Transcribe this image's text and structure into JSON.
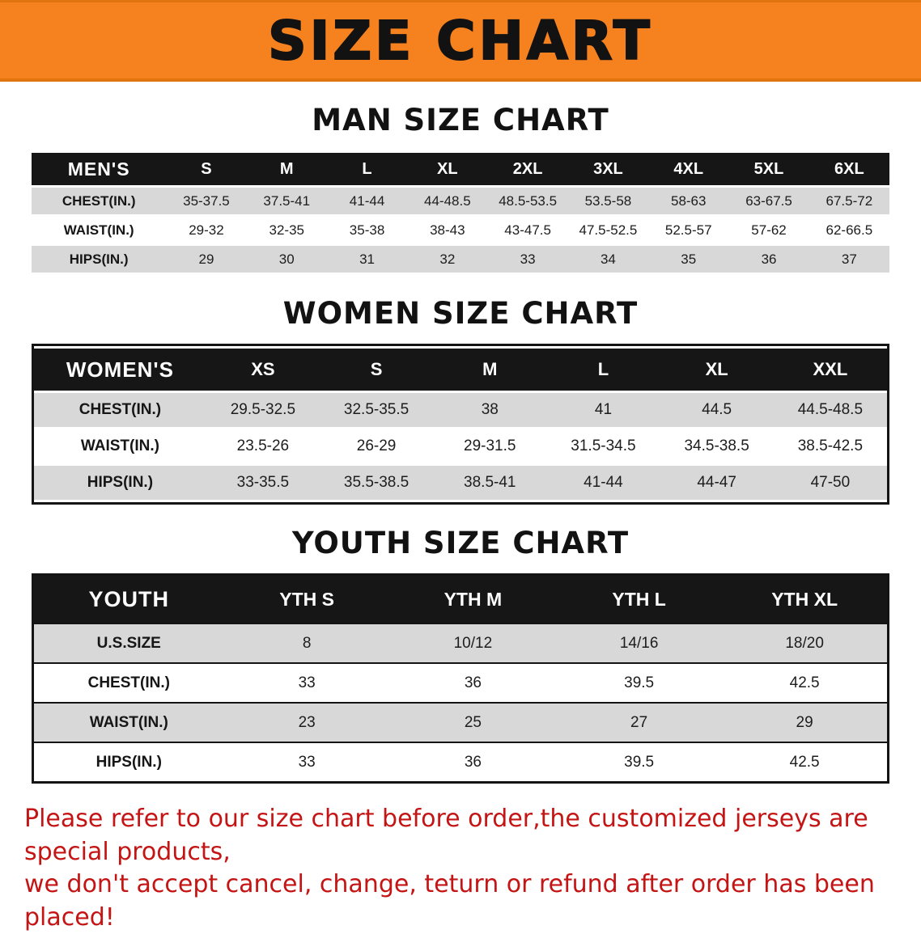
{
  "banner": {
    "title": "SIZE CHART",
    "background_color": "#F5821F"
  },
  "sections": {
    "men": {
      "title": "MAN SIZE CHART",
      "table": {
        "label": "MEN'S",
        "columns": [
          "S",
          "M",
          "L",
          "XL",
          "2XL",
          "3XL",
          "4XL",
          "5XL",
          "6XL"
        ],
        "rows": [
          {
            "label": "CHEST(IN.)",
            "values": [
              "35-37.5",
              "37.5-41",
              "41-44",
              "44-48.5",
              "48.5-53.5",
              "53.5-58",
              "58-63",
              "63-67.5",
              "67.5-72"
            ]
          },
          {
            "label": "WAIST(IN.)",
            "values": [
              "29-32",
              "32-35",
              "35-38",
              "38-43",
              "43-47.5",
              "47.5-52.5",
              "52.5-57",
              "57-62",
              "62-66.5"
            ]
          },
          {
            "label": "HIPS(IN.)",
            "values": [
              "29",
              "30",
              "31",
              "32",
              "33",
              "34",
              "35",
              "36",
              "37"
            ]
          }
        ]
      }
    },
    "women": {
      "title": "WOMEN SIZE CHART",
      "table": {
        "label": "WOMEN'S",
        "columns": [
          "XS",
          "S",
          "M",
          "L",
          "XL",
          "XXL"
        ],
        "rows": [
          {
            "label": "CHEST(IN.)",
            "values": [
              "29.5-32.5",
              "32.5-35.5",
              "38",
              "41",
              "44.5",
              "44.5-48.5"
            ]
          },
          {
            "label": "WAIST(IN.)",
            "values": [
              "23.5-26",
              "26-29",
              "29-31.5",
              "31.5-34.5",
              "34.5-38.5",
              "38.5-42.5"
            ]
          },
          {
            "label": "HIPS(IN.)",
            "values": [
              "33-35.5",
              "35.5-38.5",
              "38.5-41",
              "41-44",
              "44-47",
              "47-50"
            ]
          }
        ]
      }
    },
    "youth": {
      "title": "YOUTH SIZE CHART",
      "table": {
        "label": "YOUTH",
        "columns": [
          "YTH S",
          "YTH M",
          "YTH L",
          "YTH XL"
        ],
        "rows": [
          {
            "label": "U.S.SIZE",
            "values": [
              "8",
              "10/12",
              "14/16",
              "18/20"
            ]
          },
          {
            "label": "CHEST(IN.)",
            "values": [
              "33",
              "36",
              "39.5",
              "42.5"
            ]
          },
          {
            "label": "WAIST(IN.)",
            "values": [
              "23",
              "25",
              "27",
              "29"
            ]
          },
          {
            "label": "HIPS(IN.)",
            "values": [
              "33",
              "36",
              "39.5",
              "42.5"
            ]
          }
        ]
      }
    }
  },
  "footer": {
    "line1": "Please refer to our size chart before order,the customized jerseys are special products,",
    "line2": "we don't accept cancel, change, teturn or refund after order has been placed!",
    "text_color": "#C41414"
  }
}
